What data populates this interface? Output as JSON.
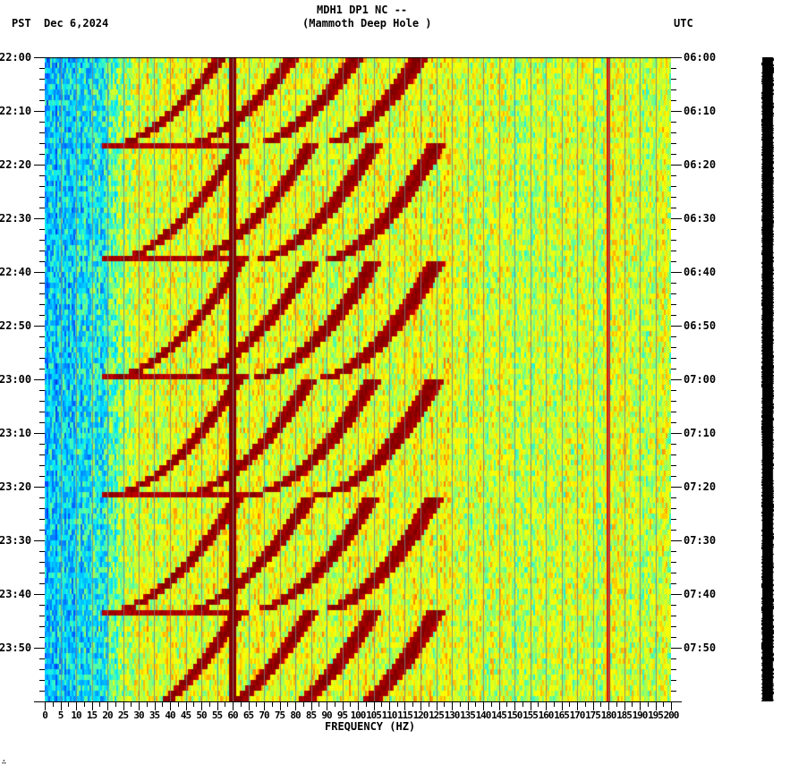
{
  "header": {
    "title": "MDH1 DP1 NC --",
    "subtitle": "(Mammoth Deep Hole )",
    "left_timezone": "PST",
    "date": "Dec 6,2024",
    "right_timezone": "UTC"
  },
  "footer_mark": "∴",
  "chart_data": {
    "type": "heatmap",
    "title": "MDH1 DP1 NC -- (Mammoth Deep Hole )",
    "xlabel": "FREQUENCY (HZ)",
    "ylabel_left": "PST",
    "ylabel_right": "UTC",
    "date": "Dec 6,2024",
    "x_range": [
      0,
      200
    ],
    "x_ticks": [
      0,
      5,
      10,
      15,
      20,
      25,
      30,
      35,
      40,
      45,
      50,
      55,
      60,
      65,
      70,
      75,
      80,
      85,
      90,
      95,
      100,
      105,
      110,
      115,
      120,
      125,
      130,
      135,
      140,
      145,
      150,
      155,
      160,
      165,
      170,
      175,
      180,
      185,
      190,
      195,
      200
    ],
    "y_ticks_left": [
      "22:00",
      "22:10",
      "22:20",
      "22:30",
      "22:40",
      "22:50",
      "23:00",
      "23:10",
      "23:20",
      "23:30",
      "23:40",
      "23:50"
    ],
    "y_ticks_right": [
      "06:00",
      "06:10",
      "06:20",
      "06:30",
      "06:40",
      "06:50",
      "07:00",
      "07:10",
      "07:20",
      "07:30",
      "07:40",
      "07:50"
    ],
    "time_range_minutes": 120,
    "minor_tick_minutes": 2,
    "colormap": [
      "#0000c8",
      "#0050ff",
      "#00a0ff",
      "#00e8ff",
      "#60ff98",
      "#c8ff30",
      "#ffff00",
      "#ffa000",
      "#ff3000",
      "#c00000",
      "#800000"
    ],
    "persistent_lines_hz": [
      {
        "freq": 60,
        "strength": 1.0,
        "width_hz": 1.4
      },
      {
        "freq": 180,
        "strength": 0.85,
        "width_hz": 0.5
      }
    ],
    "grid_line_every_hz": 5,
    "sweep_events_minute": [
      16.5,
      37.5,
      59.5,
      81.5,
      103.5
    ],
    "sweep_period_minutes": 21.7,
    "sweep_features": "Repeating chirp arcs: frequency rises from ~20 Hz to ~62 Hz and harmonics up to ~125 Hz over each ~21.7 minute cycle",
    "harmonic_start_hz": [
      20,
      43,
      65,
      87
    ],
    "harmonic_end_hz": [
      62,
      85,
      105,
      125
    ],
    "background_trend": "Low frequencies (0-20 Hz) blue/cyan; 25-130 Hz green/yellow with red arcs; 130-200 Hz yellow-green noise"
  },
  "amplitude_bar": {
    "label": "amplitude-trace",
    "color": "#000000"
  }
}
